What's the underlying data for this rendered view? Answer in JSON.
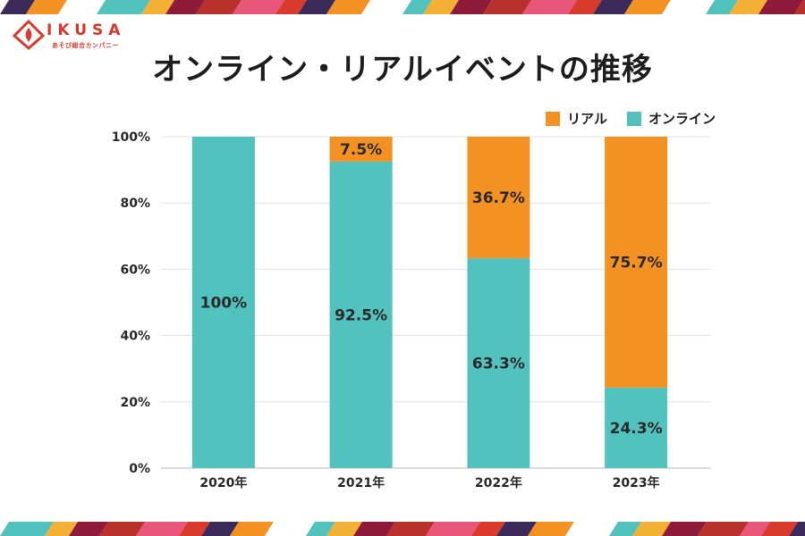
{
  "logo": {
    "brand": "IKUSA",
    "tagline": "あそび総合カンパニー"
  },
  "colors": {
    "online": "#52c2bf",
    "real": "#f39222",
    "brand": "#d83b2b",
    "grid": "#e2e2e2",
    "text": "#2a2a2a"
  },
  "chart_data": {
    "type": "bar",
    "stacked": true,
    "title": "オンライン・リアルイベントの推移",
    "categories": [
      "2020年",
      "2021年",
      "2022年",
      "2023年"
    ],
    "series": [
      {
        "name": "オンライン",
        "values": [
          100,
          92.5,
          63.3,
          24.3
        ],
        "labels": [
          "100%",
          "92.5%",
          "63.3%",
          "24.3%"
        ]
      },
      {
        "name": "リアル",
        "values": [
          0,
          7.5,
          36.7,
          75.7
        ],
        "labels": [
          "",
          "7.5%",
          "36.7%",
          "75.7%"
        ]
      }
    ],
    "yticks": [
      "0%",
      "20%",
      "40%",
      "60%",
      "80%",
      "100%"
    ],
    "ylim": [
      0,
      100
    ],
    "legend": "top-right",
    "grid": true
  }
}
